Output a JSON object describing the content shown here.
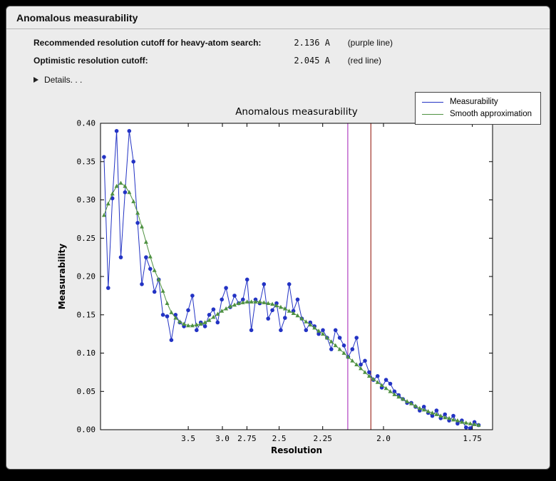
{
  "window": {
    "title": "Anomalous measurability"
  },
  "info": {
    "rows": [
      {
        "label": "Recommended resolution cutoff for heavy-atom search:",
        "value": "2.136 A",
        "note": "(purple line)"
      },
      {
        "label": "Optimistic resolution cutoff:",
        "value": "2.045 A",
        "note": "(red line)"
      }
    ],
    "details_label": "Details. . ."
  },
  "legend": {
    "items": [
      {
        "label": "Measurability",
        "color": "#2333c4"
      },
      {
        "label": "Smooth approximation",
        "color": "#4e9141"
      }
    ]
  },
  "chart_data": {
    "type": "line",
    "title": "Anomalous measurability",
    "xlabel": "Resolution",
    "ylabel": "Measurability",
    "grid": false,
    "legend_position": "upper right outside axes",
    "x_scale": "1/d^2 (resolution in Angstrom, decreasing left to right)",
    "x_axis_s2_range": [
      0.006,
      0.344
    ],
    "ylim": [
      0,
      0.4
    ],
    "y_ticks": [
      "0.00",
      "0.05",
      "0.10",
      "0.15",
      "0.20",
      "0.25",
      "0.30",
      "0.35",
      "0.40"
    ],
    "x_ticks": [
      {
        "label": "3.5",
        "d": 3.5
      },
      {
        "label": "3.0",
        "d": 3.0
      },
      {
        "label": "2.75",
        "d": 2.75
      },
      {
        "label": "2.5",
        "d": 2.5
      },
      {
        "label": "2.25",
        "d": 2.25
      },
      {
        "label": "2.0",
        "d": 2.0
      },
      {
        "label": "1.75",
        "d": 1.75
      }
    ],
    "vlines": [
      {
        "name": "recommended-cutoff",
        "d": 2.136,
        "color": "#b040c0"
      },
      {
        "name": "optimistic-cutoff",
        "d": 2.045,
        "color": "#a03228"
      }
    ],
    "series": [
      {
        "name": "Measurability",
        "color": "#2333c4",
        "marker": "circle",
        "data_s2_range": [
          0.009,
          0.332
        ],
        "values": [
          0.356,
          0.185,
          0.302,
          0.39,
          0.225,
          0.31,
          0.39,
          0.35,
          0.27,
          0.19,
          0.225,
          0.21,
          0.18,
          0.196,
          0.15,
          0.148,
          0.117,
          0.15,
          0.14,
          0.135,
          0.156,
          0.175,
          0.13,
          0.14,
          0.135,
          0.15,
          0.157,
          0.14,
          0.17,
          0.185,
          0.16,
          0.175,
          0.165,
          0.17,
          0.196,
          0.13,
          0.17,
          0.165,
          0.19,
          0.145,
          0.156,
          0.165,
          0.13,
          0.146,
          0.19,
          0.155,
          0.17,
          0.145,
          0.13,
          0.14,
          0.135,
          0.125,
          0.13,
          0.12,
          0.105,
          0.13,
          0.12,
          0.11,
          0.095,
          0.105,
          0.12,
          0.085,
          0.09,
          0.075,
          0.065,
          0.07,
          0.055,
          0.065,
          0.06,
          0.05,
          0.045,
          0.04,
          0.035,
          0.035,
          0.03,
          0.025,
          0.03,
          0.022,
          0.018,
          0.025,
          0.015,
          0.02,
          0.012,
          0.018,
          0.008,
          0.012,
          0.003,
          0.002,
          0.01,
          0.006
        ]
      },
      {
        "name": "Smooth approximation",
        "color": "#4e9141",
        "marker": "triangle",
        "data_s2_range": [
          0.009,
          0.332
        ],
        "values": [
          0.28,
          0.295,
          0.308,
          0.318,
          0.322,
          0.318,
          0.31,
          0.298,
          0.283,
          0.265,
          0.245,
          0.226,
          0.208,
          0.196,
          0.181,
          0.165,
          0.153,
          0.146,
          0.141,
          0.138,
          0.136,
          0.136,
          0.137,
          0.138,
          0.14,
          0.143,
          0.147,
          0.151,
          0.155,
          0.158,
          0.161,
          0.163,
          0.165,
          0.166,
          0.167,
          0.167,
          0.167,
          0.167,
          0.166,
          0.165,
          0.164,
          0.162,
          0.16,
          0.158,
          0.155,
          0.152,
          0.149,
          0.145,
          0.141,
          0.137,
          0.133,
          0.129,
          0.125,
          0.12,
          0.115,
          0.11,
          0.105,
          0.1,
          0.095,
          0.09,
          0.085,
          0.08,
          0.075,
          0.07,
          0.066,
          0.062,
          0.058,
          0.054,
          0.05,
          0.046,
          0.043,
          0.04,
          0.037,
          0.034,
          0.031,
          0.028,
          0.026,
          0.024,
          0.022,
          0.02,
          0.018,
          0.016,
          0.015,
          0.013,
          0.012,
          0.01,
          0.009,
          0.008,
          0.007,
          0.006
        ]
      }
    ]
  }
}
